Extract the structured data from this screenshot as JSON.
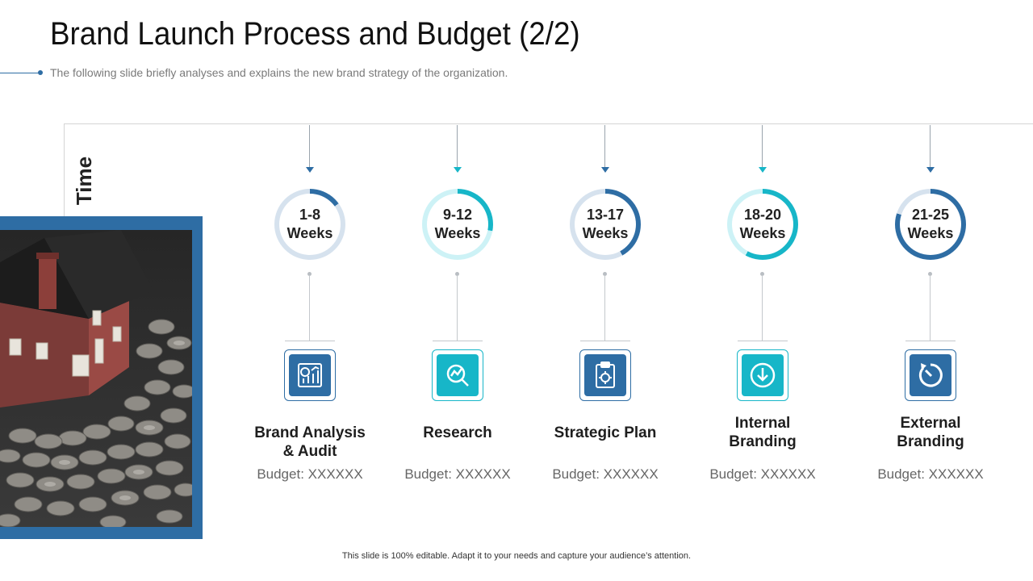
{
  "title": "Brand Launch Process and Budget (2/2)",
  "subtitle": "The following slide briefly analyses and explains the new brand strategy of the organization.",
  "axis_label": "Time",
  "footer": "This slide is 100% editable. Adapt it to your needs and capture your audience’s attention.",
  "colors": {
    "navy": "#2e6da4",
    "teal": "#17b6c8",
    "ring_light_blue": "#d6e2ee",
    "ring_light_teal": "#cdf2f6"
  },
  "steps": [
    {
      "weeks": "1-8",
      "unit": "Weeks",
      "label_line1": "Brand Analysis",
      "label_line2": "& Audit",
      "budget": "Budget: XXXXXX",
      "icon": "analysis-chart-icon",
      "accent": "navy",
      "progress_percent": 15
    },
    {
      "weeks": "9-12",
      "unit": "Weeks",
      "label_line1": "Research",
      "label_line2": "",
      "budget": "Budget: XXXXXX",
      "icon": "research-magnifier-icon",
      "accent": "teal",
      "progress_percent": 28
    },
    {
      "weeks": "13-17",
      "unit": "Weeks",
      "label_line1": "Strategic Plan",
      "label_line2": "",
      "budget": "Budget: XXXXXX",
      "icon": "clipboard-gear-icon",
      "accent": "navy",
      "progress_percent": 42
    },
    {
      "weeks": "18-20",
      "unit": "Weeks",
      "label_line1": "Internal",
      "label_line2": "Branding",
      "budget": "Budget: XXXXXX",
      "icon": "download-circle-icon",
      "accent": "teal",
      "progress_percent": 58
    },
    {
      "weeks": "21-25",
      "unit": "Weeks",
      "label_line1": "External",
      "label_line2": "Branding",
      "budget": "Budget: XXXXXX",
      "icon": "rotate-clockwise-icon",
      "accent": "navy",
      "progress_percent": 80
    }
  ]
}
